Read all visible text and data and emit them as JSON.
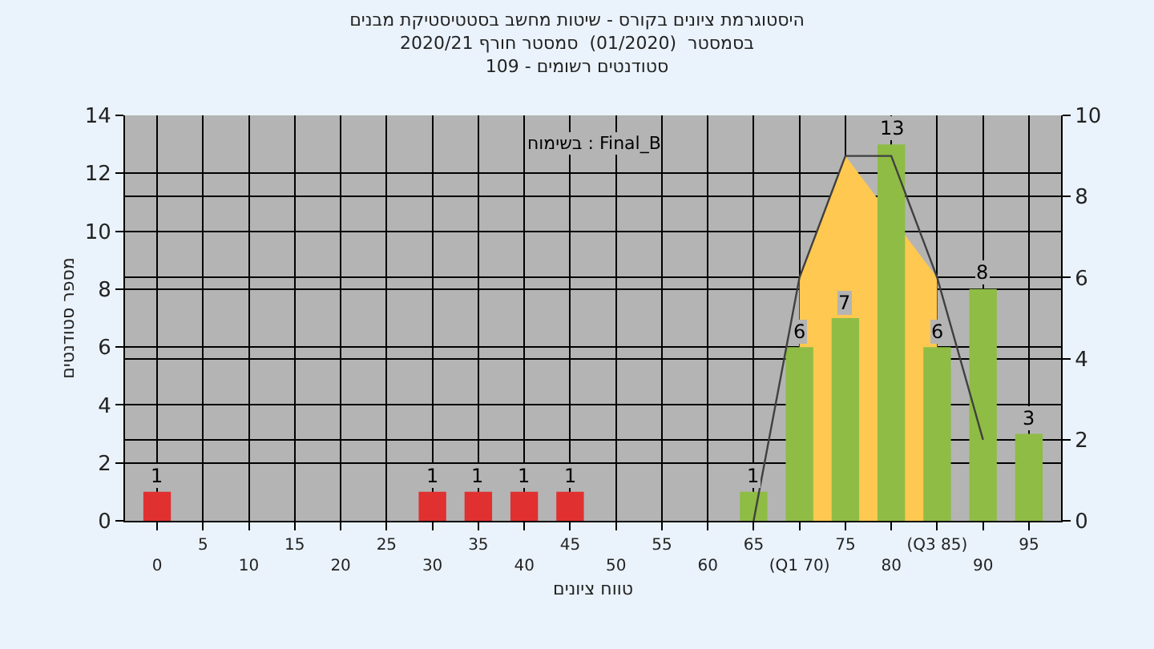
{
  "chart_data": {
    "type": "bar",
    "title": "היסטוגרמת ציונים בקורס - שיטות מחשב בסטטיסטיקת מבנים\nבסמסטר  (01/2020)  סמסטר חורף 2020/21\nסטודנטים רשומים - 109",
    "xlabel": "טווח ציונים",
    "ylabel": "מספר סטודנטים",
    "annotations": [
      "בשימוח : Final_B"
    ],
    "categories": [
      "0",
      "5",
      "10",
      "15",
      "20",
      "25",
      "30",
      "35",
      "40",
      "45",
      "50",
      "55",
      "60",
      "65",
      "(Q1 70)",
      "75",
      "80",
      "(Q3 85)",
      "90",
      "95"
    ],
    "series": [
      {
        "type": "area",
        "axis": "y2",
        "color": "#ffc850",
        "values": [
          null,
          null,
          null,
          null,
          null,
          null,
          null,
          null,
          null,
          null,
          null,
          null,
          null,
          null,
          6,
          9,
          null,
          6,
          null,
          null
        ]
      },
      {
        "colors": [
          "#e03030",
          "#e03030",
          "#e03030",
          "#e03030",
          "#e03030",
          "#e03030",
          "#e03030",
          "#e03030",
          "#e03030",
          "#e03030",
          "#e03030",
          "#e03030",
          "#e03030",
          "#8fbc45",
          "#8fbc45",
          "#8fbc45",
          "#8fbc45",
          "#8fbc45",
          "#8fbc45",
          "#8fbc45"
        ],
        "values": [
          1,
          0,
          0,
          0,
          0,
          0,
          1,
          1,
          1,
          1,
          0,
          0,
          0,
          1,
          6,
          7,
          13,
          6,
          8,
          3
        ],
        "value_labels": [
          "1",
          null,
          null,
          null,
          null,
          null,
          "1",
          "1",
          "1",
          "1",
          null,
          null,
          null,
          "1",
          "6",
          "7",
          "13",
          "6",
          "8",
          "3"
        ]
      },
      {
        "type": "line",
        "axis": "y2",
        "color": "#404040",
        "values": [
          null,
          null,
          null,
          null,
          null,
          null,
          null,
          null,
          null,
          null,
          null,
          null,
          null,
          0,
          6,
          9,
          9,
          6,
          2,
          null
        ]
      }
    ],
    "ylim": [
      0,
      14
    ],
    "yticks": [
      0,
      2,
      4,
      6,
      8,
      10,
      12,
      14
    ],
    "y2lim": [
      0,
      10
    ],
    "y2ticks": [
      0,
      2,
      4,
      6,
      8,
      10
    ],
    "grid": true
  }
}
